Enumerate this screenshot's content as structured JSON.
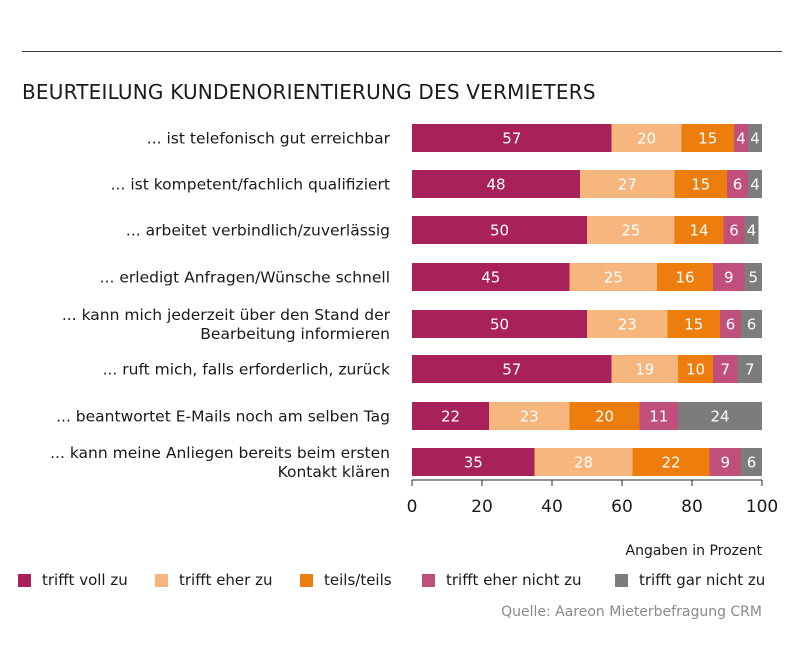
{
  "chart_data": {
    "type": "bar",
    "orientation": "horizontal",
    "stacked": true,
    "title": "BEURTEILUNG KUNDENORIENTIERUNG DES VERMIETERS",
    "categories": [
      [
        "... ist telefonisch gut erreichbar"
      ],
      [
        "... ist kompetent/fachlich qualifiziert"
      ],
      [
        "... arbeitet verbindlich/zuverlässig"
      ],
      [
        "... erledigt Anfragen/Wünsche schnell"
      ],
      [
        "... kann mich jederzeit über den Stand der",
        "Bearbeitung informieren"
      ],
      [
        "... ruft mich, falls erforderlich, zurück"
      ],
      [
        "... beantwortet E-Mails noch am selben Tag"
      ],
      [
        "... kann meine Anliegen bereits beim ersten",
        "Kontakt klären"
      ]
    ],
    "series": [
      {
        "name": "trifft voll zu",
        "color": "#a8215a",
        "values": [
          57,
          48,
          50,
          45,
          50,
          57,
          22,
          35
        ]
      },
      {
        "name": "trifft eher zu",
        "color": "#f6b67d",
        "values": [
          20,
          27,
          25,
          25,
          23,
          19,
          23,
          28
        ]
      },
      {
        "name": "teils/teils",
        "color": "#ed7d0c",
        "values": [
          15,
          15,
          14,
          16,
          15,
          10,
          20,
          22
        ]
      },
      {
        "name": "trifft eher nicht zu",
        "color": "#c04f7c",
        "values": [
          4,
          6,
          6,
          9,
          6,
          7,
          11,
          9
        ]
      },
      {
        "name": "trifft gar nicht zu",
        "color": "#7c7c7c",
        "values": [
          4,
          4,
          4,
          5,
          6,
          7,
          24,
          6
        ]
      }
    ],
    "xlim": [
      0,
      100
    ],
    "xticks": [
      0,
      20,
      40,
      60,
      80,
      100
    ],
    "grid": false,
    "legend_position": "bottom"
  },
  "unit_note": "Angaben in Prozent",
  "source": "Quelle: Aareon Mieterbefragung CRM"
}
